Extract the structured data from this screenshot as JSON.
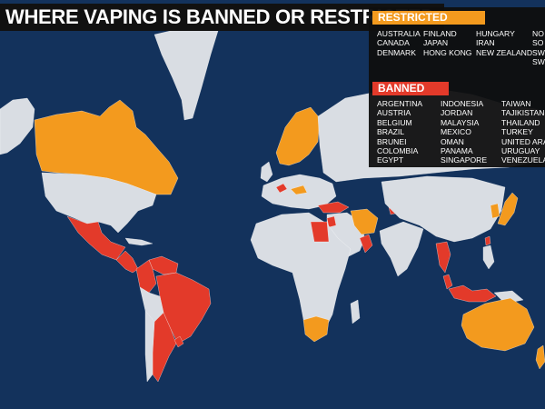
{
  "title": "WHERE VAPING IS BANNED OR RESTRICTED",
  "colors": {
    "ocean": "#13325c",
    "land": "#d9dde3",
    "restricted": "#f39a1e",
    "banned": "#e33a2a",
    "legend_bg": "#111111"
  },
  "legend": {
    "restricted": {
      "heading": "RESTRICTED",
      "columns": [
        [
          "AUSTRALIA",
          "CANADA",
          "DENMARK"
        ],
        [
          "FINLAND",
          "JAPAN",
          "HONG KONG"
        ],
        [
          "HUNGARY",
          "IRAN",
          "NEW ZEALAND"
        ],
        [
          "NO",
          "SO",
          "SW",
          "SW"
        ]
      ]
    },
    "banned": {
      "heading": "BANNED",
      "columns": [
        [
          "ARGENTINA",
          "AUSTRIA",
          "BELGIUM",
          "BRAZIL",
          "BRUNEI",
          "COLOMBIA",
          "EGYPT"
        ],
        [
          "INDONESIA",
          "JORDAN",
          "MALAYSIA",
          "MEXICO",
          "OMAN",
          "PANAMA",
          "SINGAPORE"
        ],
        [
          "TAIWAN",
          "TAJIKISTAN",
          "THAILAND",
          "TURKEY",
          "UNITED ARA",
          "URUGUAY",
          "VENEZUELA"
        ]
      ]
    }
  },
  "regions": [
    {
      "name": "greenland",
      "status": "other"
    },
    {
      "name": "alaska",
      "status": "other"
    },
    {
      "name": "canada",
      "status": "restricted"
    },
    {
      "name": "usa",
      "status": "other"
    },
    {
      "name": "mexico",
      "status": "banned"
    },
    {
      "name": "central-america",
      "status": "banned"
    },
    {
      "name": "cuba",
      "status": "other"
    },
    {
      "name": "venezuela",
      "status": "banned"
    },
    {
      "name": "colombia",
      "status": "banned"
    },
    {
      "name": "brazil",
      "status": "banned"
    },
    {
      "name": "argentina",
      "status": "banned"
    },
    {
      "name": "uruguay",
      "status": "banned"
    },
    {
      "name": "south-america-other",
      "status": "other"
    },
    {
      "name": "chile",
      "status": "other"
    },
    {
      "name": "scandinavia",
      "status": "restricted"
    },
    {
      "name": "europe",
      "status": "other"
    },
    {
      "name": "western-europe-banned",
      "status": "banned"
    },
    {
      "name": "hungary",
      "status": "restricted"
    },
    {
      "name": "uk",
      "status": "other"
    },
    {
      "name": "russia",
      "status": "other"
    },
    {
      "name": "turkey",
      "status": "banned"
    },
    {
      "name": "africa",
      "status": "other"
    },
    {
      "name": "egypt",
      "status": "banned"
    },
    {
      "name": "south-africa",
      "status": "restricted"
    },
    {
      "name": "madagascar",
      "status": "other"
    },
    {
      "name": "middle-east",
      "status": "other"
    },
    {
      "name": "jordan",
      "status": "banned"
    },
    {
      "name": "iran",
      "status": "restricted"
    },
    {
      "name": "uae-oman",
      "status": "banned"
    },
    {
      "name": "tajikistan",
      "status": "banned"
    },
    {
      "name": "india",
      "status": "other"
    },
    {
      "name": "china",
      "status": "other"
    },
    {
      "name": "thailand",
      "status": "banned"
    },
    {
      "name": "malaysia",
      "status": "banned"
    },
    {
      "name": "indonesia",
      "status": "banned"
    },
    {
      "name": "philippines",
      "status": "other"
    },
    {
      "name": "korea",
      "status": "restricted"
    },
    {
      "name": "japan",
      "status": "restricted"
    },
    {
      "name": "taiwan",
      "status": "banned"
    },
    {
      "name": "australia",
      "status": "restricted"
    },
    {
      "name": "new-guinea",
      "status": "other"
    },
    {
      "name": "new-zealand",
      "status": "restricted"
    }
  ]
}
